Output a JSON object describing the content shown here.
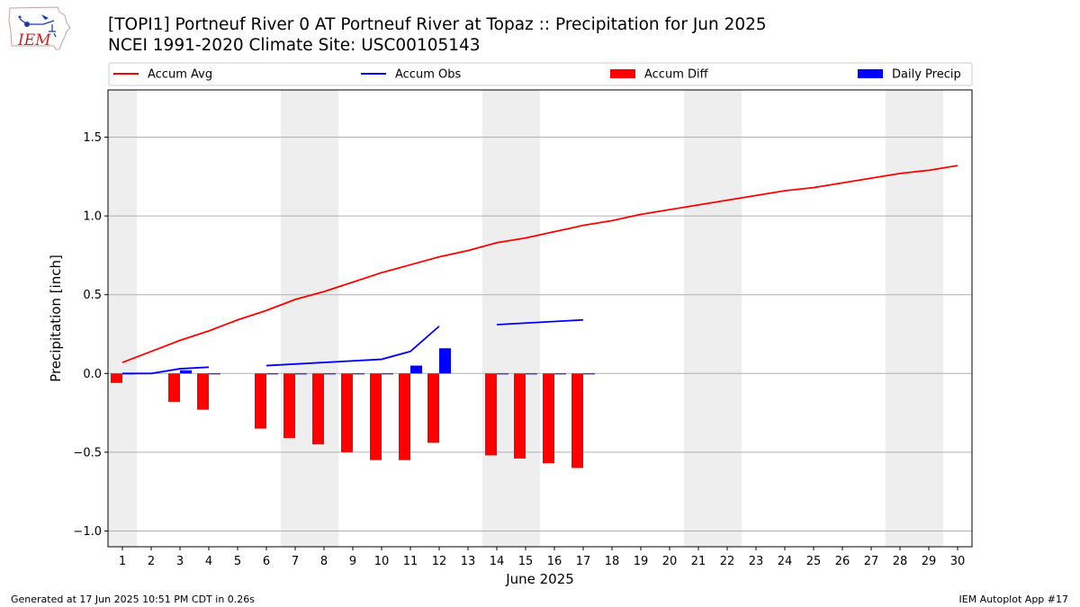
{
  "header": {
    "title_line1": "[TOPI1] Portneuf River 0 AT Portneuf River at Topaz :: Precipitation for Jun 2025",
    "title_line2": "NCEI 1991-2020 Climate Site: USC00105143"
  },
  "logo": {
    "text": "IEM"
  },
  "footer": {
    "generated": "Generated at 17 Jun 2025 10:51 PM CDT in 0.26s",
    "app": "IEM Autoplot App #17"
  },
  "colors": {
    "accum_avg": "#ff0000",
    "accum_obs": "#0000ff",
    "accum_diff": "#ff0000",
    "daily_precip": "#0000ff",
    "weekend_shade": "#eeeeee",
    "grid": "#b0b0b0"
  },
  "chart_data": {
    "type": "bar",
    "title": "[TOPI1] Portneuf River 0 AT Portneuf River at Topaz :: Precipitation for Jun 2025",
    "subtitle": "NCEI 1991-2020 Climate Site: USC00105143",
    "xlabel": "June 2025",
    "ylabel": "Precipitation [inch]",
    "x": [
      1,
      2,
      3,
      4,
      5,
      6,
      7,
      8,
      9,
      10,
      11,
      12,
      13,
      14,
      15,
      16,
      17,
      18,
      19,
      20,
      21,
      22,
      23,
      24,
      25,
      26,
      27,
      28,
      29,
      30
    ],
    "xlim": [
      0.5,
      30.5
    ],
    "ylim": [
      -1.1,
      1.8
    ],
    "yticks": [
      -1.0,
      -0.5,
      0.0,
      0.5,
      1.0,
      1.5
    ],
    "ytick_labels": [
      "−1.0",
      "−0.5",
      "0.0",
      "0.5",
      "1.0",
      "1.5"
    ],
    "grid": "horizontal",
    "legend_placement": "top, above plot",
    "weekend_shading": [
      [
        0.5,
        1.5
      ],
      [
        6.5,
        8.5
      ],
      [
        13.5,
        15.5
      ],
      [
        20.5,
        22.5
      ],
      [
        27.5,
        29.5
      ]
    ],
    "series": [
      {
        "name": "Accum Avg",
        "kind": "line",
        "values": [
          0.07,
          0.14,
          0.21,
          0.27,
          0.34,
          0.4,
          0.47,
          0.52,
          0.58,
          0.64,
          0.69,
          0.74,
          0.78,
          0.83,
          0.86,
          0.9,
          0.94,
          0.97,
          1.01,
          1.04,
          1.07,
          1.1,
          1.13,
          1.16,
          1.18,
          1.21,
          1.24,
          1.27,
          1.29,
          1.32
        ]
      },
      {
        "name": "Accum Obs",
        "kind": "line",
        "values": [
          0.0,
          0.0,
          0.03,
          0.04,
          null,
          0.05,
          0.06,
          0.07,
          0.08,
          0.09,
          0.14,
          0.3,
          null,
          0.31,
          0.32,
          0.33,
          0.34,
          null,
          null,
          null,
          null,
          null,
          null,
          null,
          null,
          null,
          null,
          null,
          null,
          null
        ]
      },
      {
        "name": "Accum Diff",
        "kind": "bar",
        "values": [
          -0.06,
          null,
          -0.18,
          -0.23,
          null,
          -0.35,
          -0.41,
          -0.45,
          -0.5,
          -0.55,
          -0.55,
          -0.44,
          null,
          -0.52,
          -0.54,
          -0.57,
          -0.6,
          null,
          null,
          null,
          null,
          null,
          null,
          null,
          null,
          null,
          null,
          null,
          null,
          null
        ]
      },
      {
        "name": "Daily Precip",
        "kind": "bar",
        "values": [
          0.0,
          null,
          0.02,
          0.0,
          null,
          0.0,
          0.0,
          0.0,
          0.0,
          0.0,
          0.05,
          0.16,
          null,
          0.0,
          0.0,
          0.0,
          0.0,
          null,
          null,
          null,
          null,
          null,
          null,
          null,
          null,
          null,
          null,
          null,
          null,
          null
        ]
      }
    ]
  }
}
